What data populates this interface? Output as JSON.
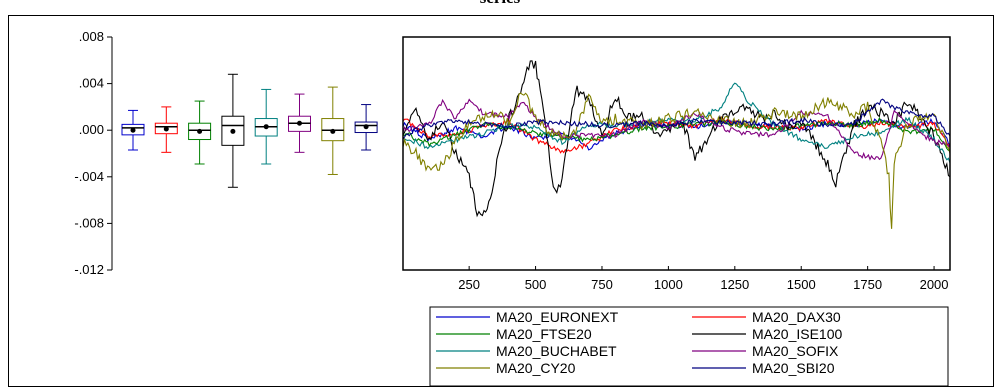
{
  "chart_data": [
    {
      "type": "box",
      "title": "series",
      "ylim": [
        -0.012,
        0.008
      ],
      "y_ticks": [
        ".008",
        ".004",
        ".000",
        "-.004",
        "-.008",
        "-.012"
      ],
      "y_tick_values": [
        0.008,
        0.004,
        0.0,
        -0.004,
        -0.008,
        -0.012
      ],
      "boxes": [
        {
          "series": "MA20_EURONEXT",
          "color": "#0000cc",
          "whisker_low": -0.0017,
          "q1": -0.0004,
          "median": 0.0002,
          "mean": 0.0,
          "q3": 0.0005,
          "whisker_high": 0.0017
        },
        {
          "series": "MA20_DAX30",
          "color": "#ff0000",
          "whisker_low": -0.0019,
          "q1": -0.0003,
          "median": 0.0003,
          "mean": 0.0001,
          "q3": 0.0006,
          "whisker_high": 0.002
        },
        {
          "series": "MA20_FTSE20",
          "color": "#008000",
          "whisker_low": -0.0029,
          "q1": -0.0008,
          "median": 0.0,
          "mean": -0.0001,
          "q3": 0.0006,
          "whisker_high": 0.0025
        },
        {
          "series": "MA20_ISE100",
          "color": "#000000",
          "whisker_low": -0.0049,
          "q1": -0.0013,
          "median": 0.0004,
          "mean": -0.0001,
          "q3": 0.0012,
          "whisker_high": 0.0048
        },
        {
          "series": "MA20_BUCHABET",
          "color": "#008080",
          "whisker_low": -0.0029,
          "q1": -0.0005,
          "median": 0.0003,
          "mean": 0.0003,
          "q3": 0.001,
          "whisker_high": 0.0035
        },
        {
          "series": "MA20_SOFIX",
          "color": "#800080",
          "whisker_low": -0.0019,
          "q1": -0.0001,
          "median": 0.0006,
          "mean": 0.0006,
          "q3": 0.0012,
          "whisker_high": 0.0031
        },
        {
          "series": "MA20_CY20",
          "color": "#808000",
          "whisker_low": -0.0038,
          "q1": -0.0009,
          "median": 0.0,
          "mean": -0.0001,
          "q3": 0.001,
          "whisker_high": 0.0037
        },
        {
          "series": "MA20_SBI20",
          "color": "#000080",
          "whisker_low": -0.0017,
          "q1": -0.0002,
          "median": 0.0004,
          "mean": 0.0003,
          "q3": 0.0007,
          "whisker_high": 0.0022
        }
      ]
    },
    {
      "type": "line",
      "xlim": [
        1,
        2060
      ],
      "ylim": [
        -0.012,
        0.008
      ],
      "x_ticks": [
        "250",
        "500",
        "750",
        "1000",
        "1250",
        "1500",
        "1750",
        "2000"
      ],
      "x_tick_values": [
        250,
        500,
        750,
        1000,
        1250,
        1500,
        1750,
        2000
      ],
      "grid": false,
      "legend_position": "bottom",
      "series": [
        {
          "name": "MA20_EURONEXT",
          "color": "#0000cc",
          "x": [
            1,
            100,
            200,
            300,
            400,
            500,
            600,
            700,
            800,
            900,
            1000,
            1100,
            1200,
            1300,
            1400,
            1500,
            1600,
            1700,
            1800,
            1900,
            2000,
            2060
          ],
          "y": [
            0.0005,
            -0.0008,
            0.0002,
            -0.0005,
            0.0003,
            -0.0007,
            -0.0002,
            -0.0015,
            -0.0003,
            0.0004,
            0.0005,
            0.0003,
            0.0008,
            0.0005,
            0.0004,
            0.0001,
            0.0006,
            0.0005,
            0.0008,
            0.0002,
            0.0008,
            -0.0012
          ]
        },
        {
          "name": "MA20_DAX30",
          "color": "#ff0000",
          "x": [
            1,
            100,
            200,
            300,
            400,
            500,
            600,
            700,
            800,
            900,
            1000,
            1100,
            1200,
            1300,
            1400,
            1500,
            1600,
            1700,
            1800,
            1900,
            2000,
            2060
          ],
          "y": [
            0.001,
            -0.0005,
            -0.0003,
            0.0003,
            0.0007,
            -0.0008,
            -0.0018,
            -0.0012,
            0.0,
            0.0005,
            0.0006,
            0.0004,
            0.0009,
            0.0004,
            0.0003,
            0.0002,
            0.0008,
            0.0002,
            0.0006,
            0.0003,
            0.0005,
            -0.0015
          ]
        },
        {
          "name": "MA20_FTSE20",
          "color": "#008000",
          "x": [
            1,
            100,
            200,
            300,
            400,
            500,
            600,
            700,
            800,
            900,
            1000,
            1100,
            1200,
            1300,
            1400,
            1500,
            1600,
            1700,
            1800,
            1900,
            2000,
            2060
          ],
          "y": [
            -0.0002,
            -0.0012,
            -0.0004,
            0.0005,
            0.0002,
            -0.0003,
            -0.0006,
            -0.0008,
            -0.0004,
            0.0002,
            0.0003,
            0.0005,
            0.0007,
            0.0003,
            0.0001,
            0.0004,
            0.0006,
            0.0004,
            0.0009,
            -0.0002,
            0.0001,
            -0.0018
          ]
        },
        {
          "name": "MA20_ISE100",
          "color": "#000000",
          "x": [
            1,
            50,
            100,
            150,
            200,
            250,
            280,
            300,
            330,
            360,
            400,
            450,
            480,
            500,
            530,
            560,
            580,
            600,
            650,
            700,
            750,
            800,
            850,
            900,
            950,
            1000,
            1050,
            1100,
            1150,
            1200,
            1250,
            1300,
            1350,
            1400,
            1450,
            1500,
            1550,
            1600,
            1630,
            1650,
            1700,
            1750,
            1800,
            1850,
            1900,
            1950,
            2000,
            2060
          ],
          "y": [
            0.0,
            0.002,
            -0.001,
            0.001,
            -0.002,
            -0.004,
            -0.007,
            -0.0075,
            -0.006,
            -0.002,
            0.001,
            0.0035,
            0.006,
            0.0055,
            0.002,
            -0.004,
            -0.0055,
            -0.004,
            0.0035,
            0.0025,
            -0.0005,
            0.003,
            0.001,
            0.0015,
            -0.0005,
            0.0002,
            0.001,
            -0.0025,
            -0.0005,
            0.001,
            0.0015,
            0.002,
            0.001,
            0.0015,
            0.0003,
            0.0005,
            -0.001,
            -0.003,
            -0.0045,
            -0.003,
            0.0005,
            0.002,
            0.0015,
            0.0005,
            0.0025,
            0.001,
            -0.0005,
            -0.004
          ]
        },
        {
          "name": "MA20_BUCHABET",
          "color": "#008080",
          "x": [
            1,
            100,
            200,
            300,
            400,
            500,
            600,
            700,
            800,
            900,
            1000,
            1100,
            1200,
            1250,
            1300,
            1400,
            1500,
            1600,
            1700,
            1800,
            1900,
            2000,
            2060
          ],
          "y": [
            -0.0005,
            -0.0015,
            -0.0008,
            -0.0003,
            0.0005,
            0.0002,
            -0.001,
            0.0005,
            0.0004,
            0.0006,
            0.001,
            0.0008,
            0.002,
            0.0042,
            0.0025,
            0.0005,
            -0.0008,
            -0.0015,
            -0.0005,
            -0.0002,
            0.001,
            -0.0008,
            -0.0028
          ]
        },
        {
          "name": "MA20_SOFIX",
          "color": "#800080",
          "x": [
            1,
            100,
            150,
            200,
            250,
            300,
            400,
            450,
            500,
            600,
            700,
            800,
            900,
            1000,
            1100,
            1200,
            1300,
            1400,
            1500,
            1600,
            1700,
            1800,
            1850,
            1900,
            2000,
            2060
          ],
          "y": [
            0.0,
            0.0005,
            0.0025,
            0.001,
            0.0027,
            0.0015,
            0.0012,
            0.0025,
            0.001,
            -0.0005,
            -0.0004,
            -0.0004,
            0.0008,
            0.0002,
            0.0015,
            0.0002,
            -0.0003,
            -0.0005,
            0.0015,
            0.0012,
            -0.002,
            -0.0025,
            0.0016,
            0.0005,
            -0.001,
            -0.0012
          ]
        },
        {
          "name": "MA20_CY20",
          "color": "#808000",
          "x": [
            1,
            50,
            100,
            150,
            200,
            250,
            300,
            350,
            400,
            450,
            500,
            550,
            600,
            650,
            700,
            750,
            800,
            900,
            1000,
            1100,
            1200,
            1300,
            1400,
            1500,
            1600,
            1700,
            1750,
            1800,
            1830,
            1840,
            1850,
            1900,
            2000,
            2060
          ],
          "y": [
            -0.001,
            -0.002,
            -0.0035,
            -0.003,
            -0.001,
            0.0005,
            0.001,
            0.0015,
            0.0005,
            0.0035,
            0.001,
            0.0,
            -0.0005,
            -0.0002,
            0.003,
            0.0005,
            0.001,
            0.0005,
            0.001,
            0.0015,
            0.0008,
            0.0005,
            0.0015,
            0.0012,
            0.0025,
            0.0015,
            0.002,
            -0.001,
            -0.004,
            -0.0088,
            -0.0025,
            0.0005,
            0.0015,
            -0.002
          ]
        },
        {
          "name": "MA20_SBI20",
          "color": "#000080",
          "x": [
            1,
            100,
            200,
            300,
            400,
            500,
            600,
            700,
            800,
            900,
            1000,
            1100,
            1200,
            1300,
            1400,
            1500,
            1600,
            1700,
            1800,
            1900,
            2000,
            2060
          ],
          "y": [
            -0.0005,
            0.0005,
            0.0008,
            0.0005,
            0.0003,
            0.0007,
            0.0006,
            0.0005,
            0.0004,
            0.0006,
            0.0004,
            0.0008,
            0.0007,
            0.0006,
            0.0005,
            0.0009,
            0.0004,
            0.0006,
            0.0025,
            0.0015,
            0.0012,
            -0.0005
          ]
        }
      ]
    }
  ]
}
